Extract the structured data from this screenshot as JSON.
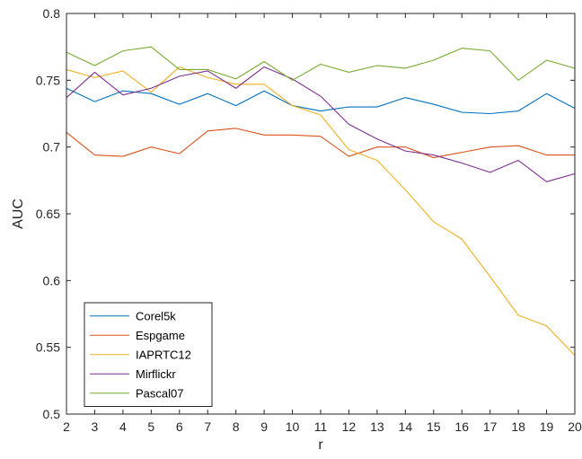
{
  "chart_data": {
    "type": "line",
    "title": "",
    "xlabel": "r",
    "ylabel": "AUC",
    "xlim": [
      2,
      20
    ],
    "ylim": [
      0.5,
      0.8
    ],
    "x": [
      2,
      3,
      4,
      5,
      6,
      7,
      8,
      9,
      10,
      11,
      12,
      13,
      14,
      15,
      16,
      17,
      18,
      19,
      20
    ],
    "xticks": [
      "2",
      "3",
      "4",
      "5",
      "6",
      "7",
      "8",
      "9",
      "10",
      "11",
      "12",
      "13",
      "14",
      "15",
      "16",
      "17",
      "18",
      "19",
      "20"
    ],
    "yticks": [
      {
        "value": 0.5,
        "label": "0.5"
      },
      {
        "value": 0.55,
        "label": "0.55"
      },
      {
        "value": 0.6,
        "label": "0.6"
      },
      {
        "value": 0.65,
        "label": "0.65"
      },
      {
        "value": 0.7,
        "label": "0.7"
      },
      {
        "value": 0.75,
        "label": "0.75"
      },
      {
        "value": 0.8,
        "label": "0.8"
      }
    ],
    "grid": false,
    "legend_position": "bottom-left",
    "series": [
      {
        "name": "Corel5k",
        "color": "#0072BD",
        "values": [
          0.744,
          0.734,
          0.742,
          0.74,
          0.732,
          0.74,
          0.731,
          0.742,
          0.731,
          0.727,
          0.73,
          0.73,
          0.737,
          0.732,
          0.726,
          0.725,
          0.727,
          0.74,
          0.729
        ]
      },
      {
        "name": "Espgame",
        "color": "#D95319",
        "values": [
          0.711,
          0.694,
          0.693,
          0.7,
          0.695,
          0.712,
          0.714,
          0.709,
          0.709,
          0.708,
          0.693,
          0.7,
          0.7,
          0.692,
          0.696,
          0.7,
          0.701,
          0.694,
          0.694
        ]
      },
      {
        "name": "IAPRTC12",
        "color": "#EDB120",
        "values": [
          0.758,
          0.752,
          0.757,
          0.741,
          0.76,
          0.752,
          0.747,
          0.747,
          0.731,
          0.724,
          0.698,
          0.69,
          0.668,
          0.644,
          0.631,
          0.603,
          0.574,
          0.566,
          0.544
        ]
      },
      {
        "name": "Mirflickr",
        "color": "#7E2F8E",
        "values": [
          0.737,
          0.756,
          0.739,
          0.744,
          0.753,
          0.757,
          0.744,
          0.76,
          0.751,
          0.738,
          0.717,
          0.706,
          0.697,
          0.694,
          0.688,
          0.681,
          0.69,
          0.674,
          0.68
        ]
      },
      {
        "name": "Pascal07",
        "color": "#77AC30",
        "values": [
          0.771,
          0.761,
          0.772,
          0.775,
          0.758,
          0.758,
          0.751,
          0.764,
          0.75,
          0.762,
          0.756,
          0.761,
          0.759,
          0.765,
          0.774,
          0.772,
          0.75,
          0.765,
          0.759
        ]
      }
    ]
  }
}
